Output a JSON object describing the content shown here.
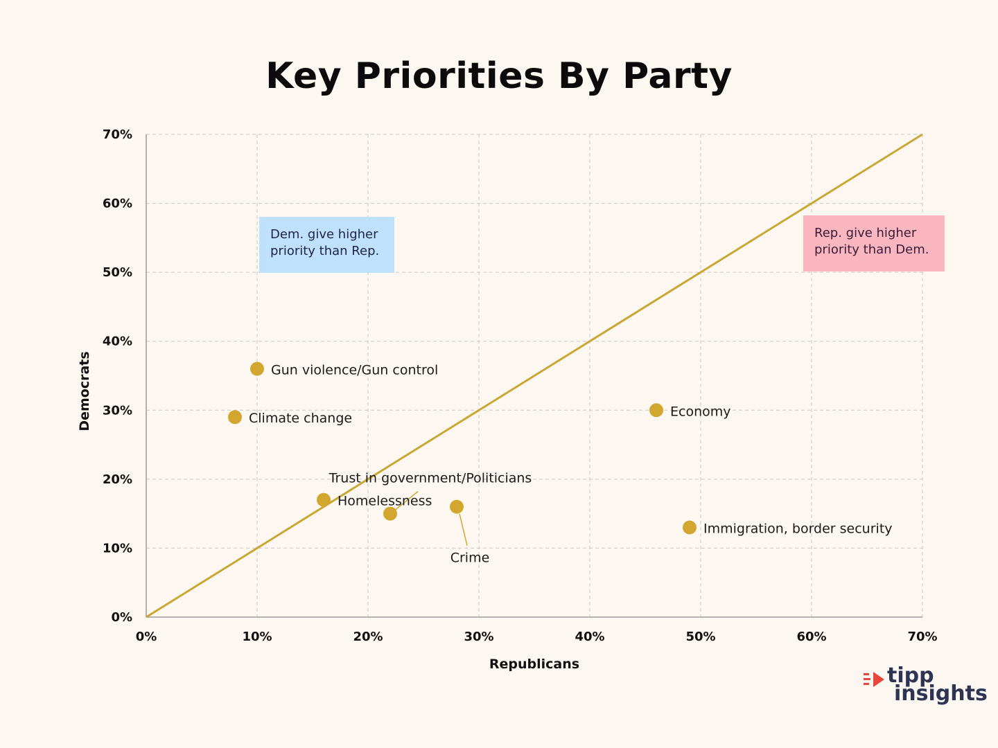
{
  "colors": {
    "background": "#fdf7f1",
    "point": "#d1a730",
    "diagonal": "#c9a733",
    "grid": "#c8c8c8",
    "dem_box": "#bfe1fb",
    "rep_box": "#fbb7c0",
    "logo_accent": "#e8473c",
    "logo_text": "#2d3553"
  },
  "chart_data": {
    "type": "scatter",
    "title": "Key Priorities By Party",
    "xlabel": "Republicans",
    "ylabel": "Democrats",
    "xlim": [
      0,
      70
    ],
    "ylim": [
      0,
      70
    ],
    "x_ticks": [
      "0%",
      "10%",
      "20%",
      "30%",
      "40%",
      "50%",
      "60%",
      "70%"
    ],
    "y_ticks": [
      "0%",
      "10%",
      "20%",
      "30%",
      "40%",
      "50%",
      "60%",
      "70%"
    ],
    "grid": true,
    "reference_line": {
      "from": [
        0,
        0
      ],
      "to": [
        70,
        70
      ]
    },
    "points": [
      {
        "label": "Gun violence/Gun control",
        "x": 10,
        "y": 36
      },
      {
        "label": "Climate change",
        "x": 8,
        "y": 29
      },
      {
        "label": "Economy",
        "x": 46,
        "y": 30
      },
      {
        "label": "Trust in government/Politicians",
        "x": 22,
        "y": 15
      },
      {
        "label": "Homelessness",
        "x": 16,
        "y": 17
      },
      {
        "label": "Crime",
        "x": 28,
        "y": 16
      },
      {
        "label": "Immigration, border security",
        "x": 49,
        "y": 13
      }
    ],
    "annotations": [
      {
        "text_lines": [
          "Dem. give higher",
          "priority than Rep."
        ],
        "region": "above-diagonal"
      },
      {
        "text_lines": [
          "Rep. give higher",
          "priority than Dem."
        ],
        "region": "below-diagonal"
      }
    ]
  },
  "logo": {
    "line1": "tipp",
    "line2": "insights"
  }
}
